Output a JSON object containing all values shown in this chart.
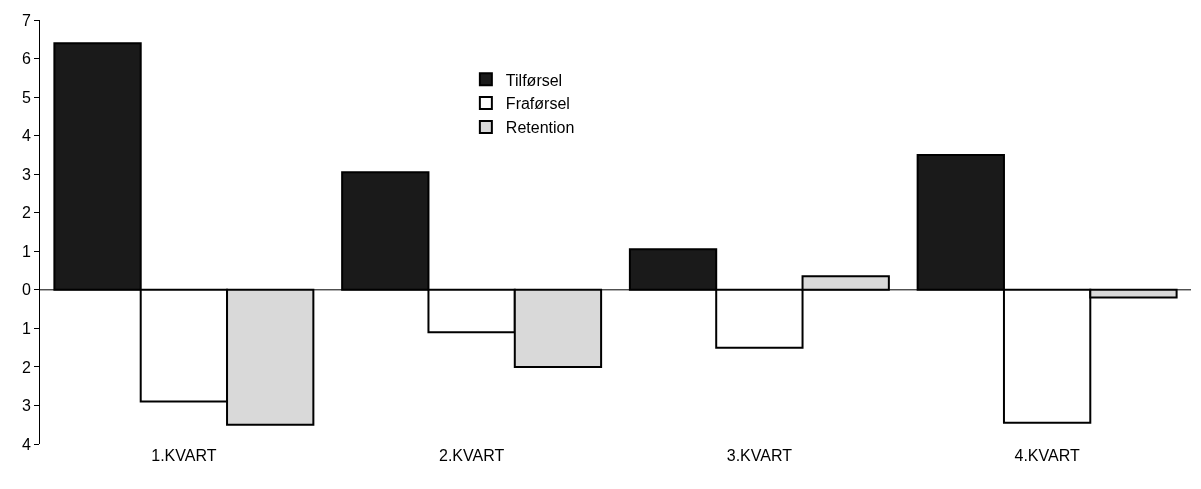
{
  "chart_data": {
    "type": "bar",
    "categories": [
      "1.KVART",
      "2.KVART",
      "3.KVART",
      "4.KVART"
    ],
    "series": [
      {
        "name": "Tilførsel",
        "color": "#1a1a1a",
        "values": [
          6.4,
          3.05,
          1.05,
          3.5
        ]
      },
      {
        "name": "Fraførsel",
        "color": "#ffffff",
        "values": [
          -2.9,
          -1.1,
          -1.5,
          -3.45
        ]
      },
      {
        "name": "Retention",
        "color": "#d9d9d9",
        "values": [
          -3.5,
          -2,
          0.35,
          -0.2
        ]
      }
    ],
    "ylim": [
      -4,
      7
    ],
    "yticks": [
      {
        "value": -4,
        "label": "4"
      },
      {
        "value": -3,
        "label": "3"
      },
      {
        "value": -2,
        "label": "2"
      },
      {
        "value": -1,
        "label": "1"
      },
      0,
      1,
      2,
      3,
      4,
      5,
      6,
      7
    ],
    "ref_lines": [
      {
        "axis": "y",
        "value": 0,
        "color": "#000000"
      }
    ],
    "grid": false,
    "legend": "top"
  }
}
